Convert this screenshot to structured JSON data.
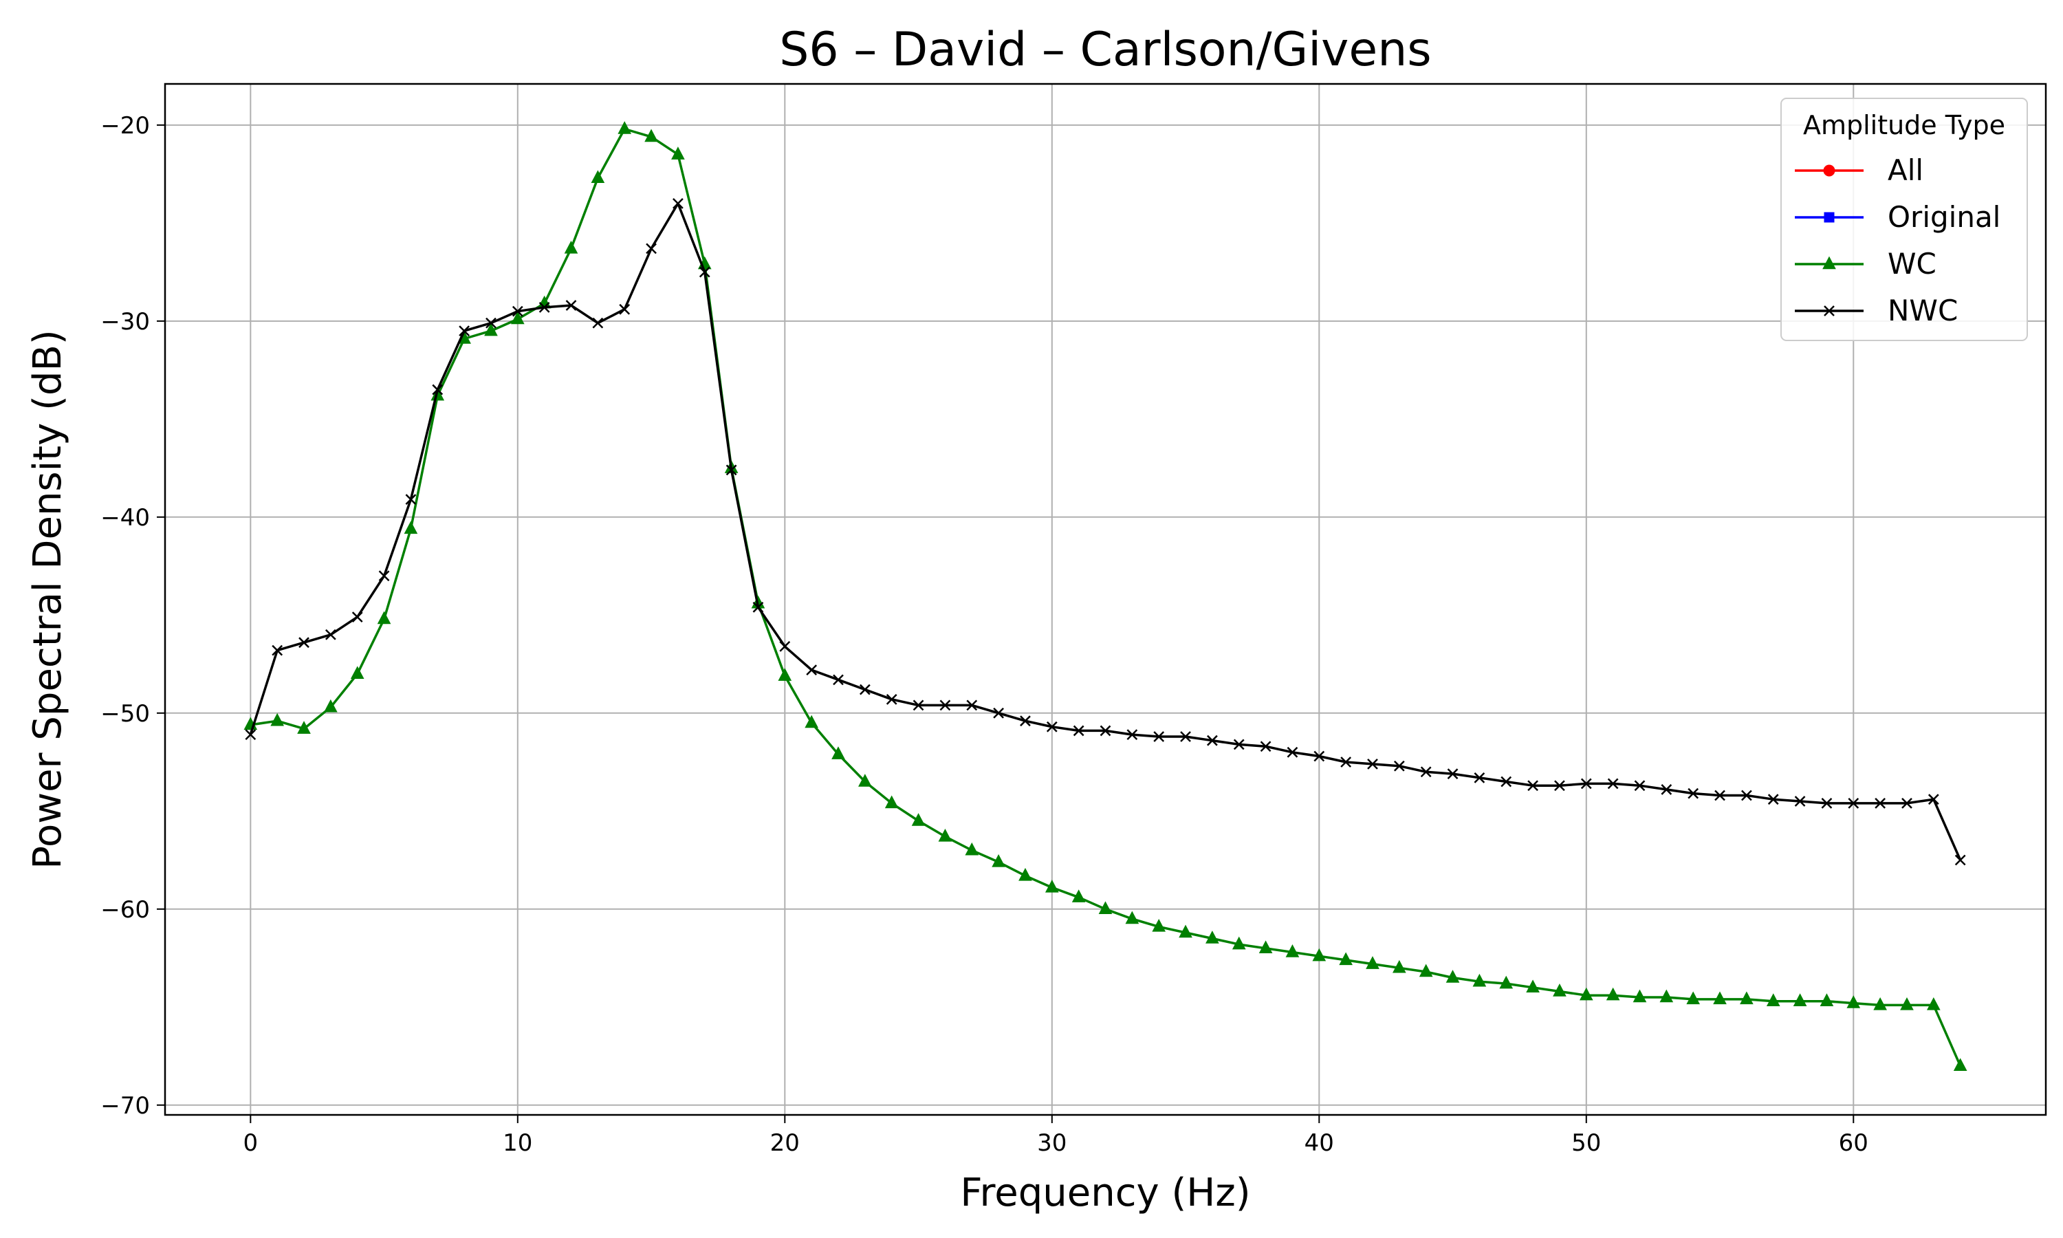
{
  "chart_data": {
    "type": "line",
    "title": "S6 – David – Carlson/Givens",
    "xlabel": "Frequency (Hz)",
    "ylabel": "Power Spectral Density (dB)",
    "xlim": [
      -3.2,
      67.2
    ],
    "ylim": [
      -70.5,
      -17.9
    ],
    "xticks": [
      0,
      10,
      20,
      30,
      40,
      50,
      60
    ],
    "yticks": [
      -70,
      -60,
      -50,
      -40,
      -30,
      -20
    ],
    "ytick_labels": [
      "−70",
      "−60",
      "−50",
      "−40",
      "−30",
      "−20"
    ],
    "grid": true,
    "legend": {
      "title": "Amplitude Type",
      "position": "top-right",
      "entries": [
        {
          "name": "All",
          "color": "#ff0000",
          "marker": "circle"
        },
        {
          "name": "Original",
          "color": "#0000ff",
          "marker": "square"
        },
        {
          "name": "WC",
          "color": "#008000",
          "marker": "triangle"
        },
        {
          "name": "NWC",
          "color": "#000000",
          "marker": "x"
        }
      ]
    },
    "x": [
      0,
      1,
      2,
      3,
      4,
      5,
      6,
      7,
      8,
      9,
      10,
      11,
      12,
      13,
      14,
      15,
      16,
      17,
      18,
      19,
      20,
      21,
      22,
      23,
      24,
      25,
      26,
      27,
      28,
      29,
      30,
      31,
      32,
      33,
      34,
      35,
      36,
      37,
      38,
      39,
      40,
      41,
      42,
      43,
      44,
      45,
      46,
      47,
      48,
      49,
      50,
      51,
      52,
      53,
      54,
      55,
      56,
      57,
      58,
      59,
      60,
      61,
      62,
      63,
      64
    ],
    "series": [
      {
        "name": "WC",
        "color": "#008000",
        "marker": "triangle",
        "values": [
          -50.6,
          -50.4,
          -50.8,
          -49.7,
          -48.0,
          -45.2,
          -40.6,
          -33.8,
          -30.9,
          -30.5,
          -29.9,
          -29.1,
          -26.3,
          -22.7,
          -20.2,
          -20.6,
          -21.5,
          -27.1,
          -37.5,
          -44.4,
          -48.1,
          -50.5,
          -52.1,
          -53.5,
          -54.6,
          -55.5,
          -56.3,
          -57.0,
          -57.6,
          -58.3,
          -58.9,
          -59.4,
          -60.0,
          -60.5,
          -60.9,
          -61.2,
          -61.5,
          -61.8,
          -62.0,
          -62.2,
          -62.4,
          -62.6,
          -62.8,
          -63.0,
          -63.2,
          -63.5,
          -63.7,
          -63.8,
          -64.0,
          -64.2,
          -64.4,
          -64.4,
          -64.5,
          -64.5,
          -64.6,
          -64.6,
          -64.6,
          -64.7,
          -64.7,
          -64.7,
          -64.8,
          -64.9,
          -64.9,
          -64.9,
          -68.0
        ]
      },
      {
        "name": "NWC",
        "color": "#000000",
        "marker": "x",
        "values": [
          -51.1,
          -46.8,
          -46.4,
          -46.0,
          -45.1,
          -43.0,
          -39.1,
          -33.5,
          -30.5,
          -30.1,
          -29.5,
          -29.3,
          -29.2,
          -30.1,
          -29.4,
          -26.3,
          -24.0,
          -27.5,
          -37.6,
          -44.6,
          -46.6,
          -47.8,
          -48.3,
          -48.8,
          -49.3,
          -49.6,
          -49.6,
          -49.6,
          -50.0,
          -50.4,
          -50.7,
          -50.9,
          -50.9,
          -51.1,
          -51.2,
          -51.2,
          -51.4,
          -51.6,
          -51.7,
          -52.0,
          -52.2,
          -52.5,
          -52.6,
          -52.7,
          -53.0,
          -53.1,
          -53.3,
          -53.5,
          -53.7,
          -53.7,
          -53.6,
          -53.6,
          -53.7,
          -53.9,
          -54.1,
          -54.2,
          -54.2,
          -54.4,
          -54.5,
          -54.6,
          -54.6,
          -54.6,
          -54.6,
          -54.4,
          -57.5
        ]
      }
    ]
  }
}
